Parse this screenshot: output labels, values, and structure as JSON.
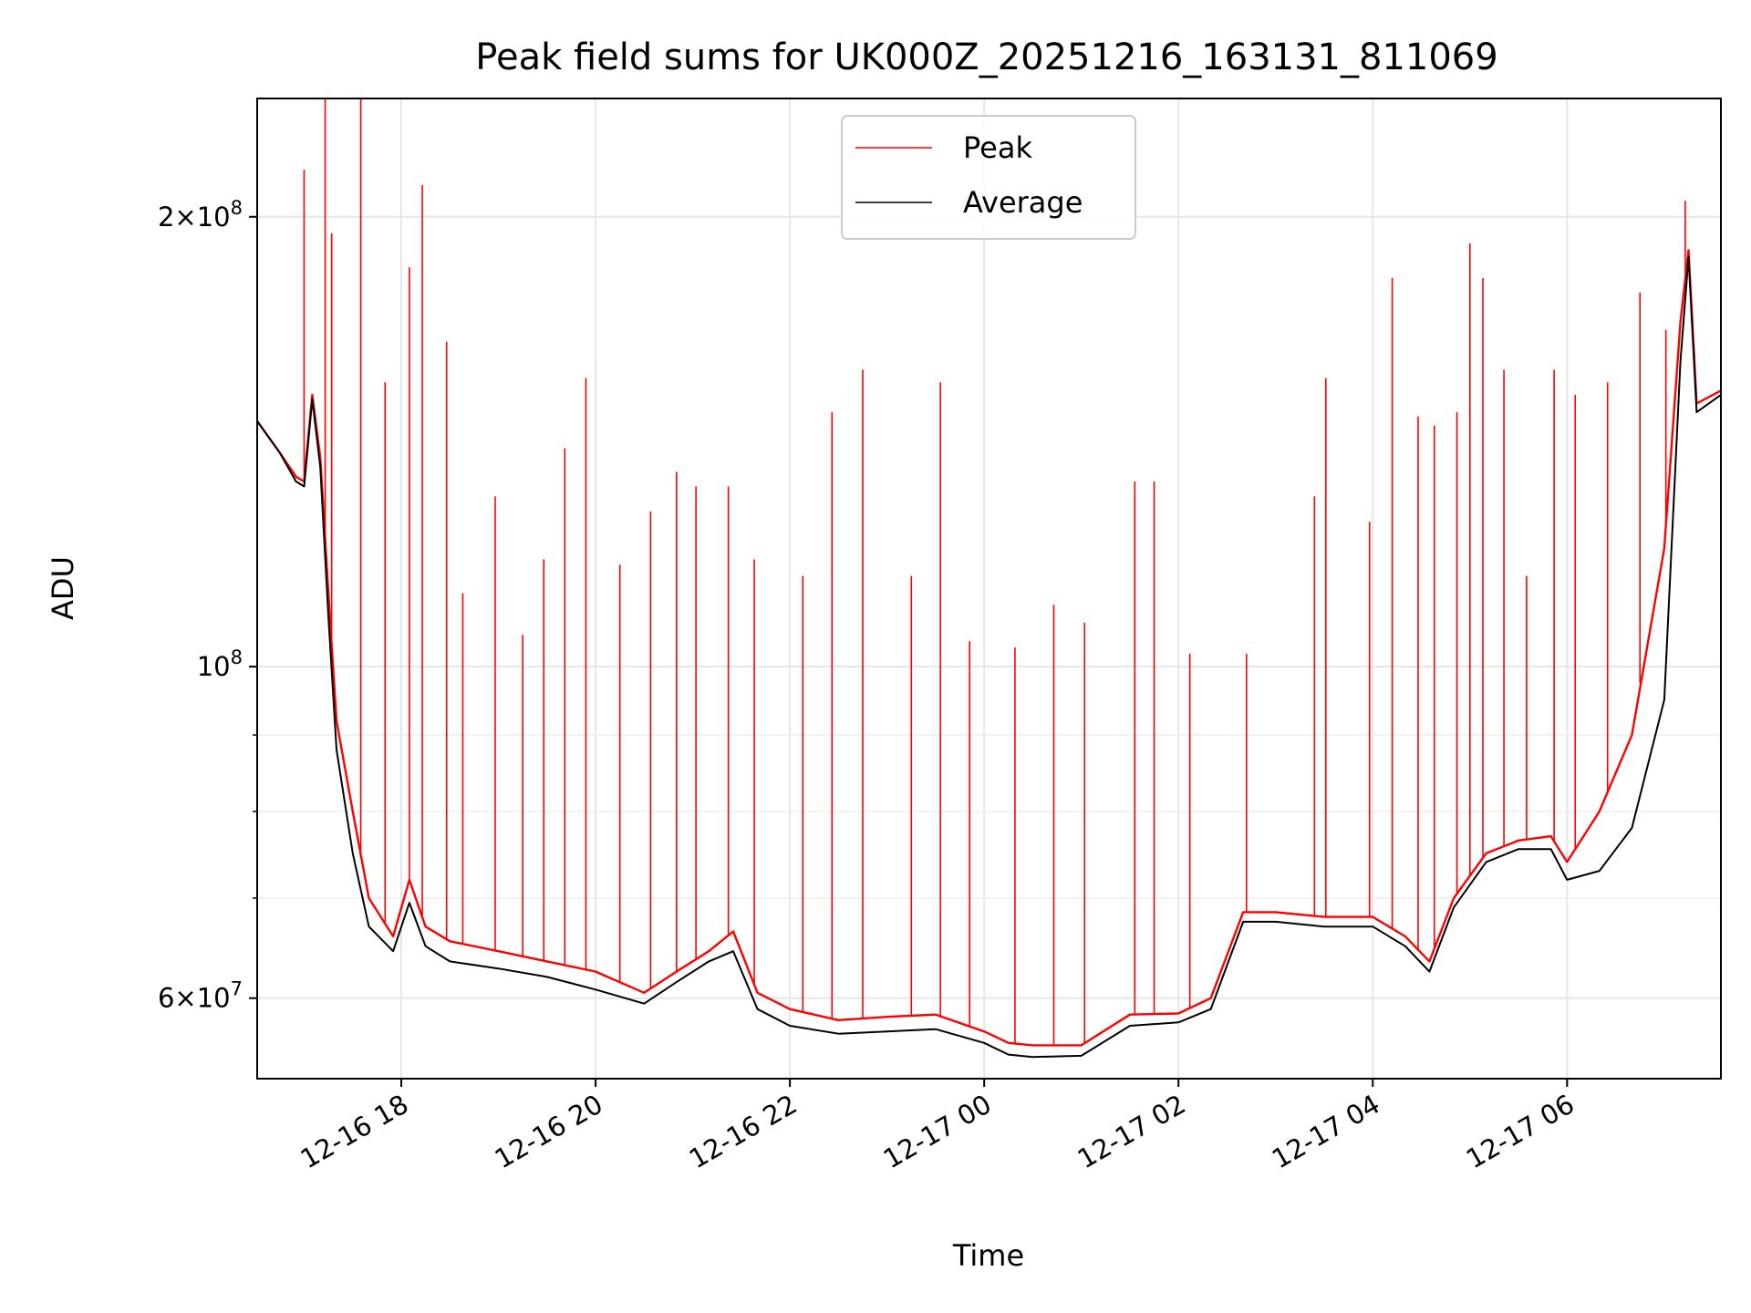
{
  "chart_data": {
    "type": "line",
    "title": "Peak field sums for UK000Z_20251216_163131_811069",
    "xlabel": "Time",
    "ylabel": "ADU",
    "yscale": "log",
    "ylim": [
      53000000,
      240000000
    ],
    "xlim": [
      "2025-12-16 16:31",
      "2025-12-17 07:35"
    ],
    "x_ticks": [
      {
        "t": "2025-12-16 18:00",
        "label": "12-16 18"
      },
      {
        "t": "2025-12-16 20:00",
        "label": "12-16 20"
      },
      {
        "t": "2025-12-16 22:00",
        "label": "12-16 22"
      },
      {
        "t": "2025-12-17 00:00",
        "label": "12-17 00"
      },
      {
        "t": "2025-12-17 02:00",
        "label": "12-17 02"
      },
      {
        "t": "2025-12-17 04:00",
        "label": "12-17 04"
      },
      {
        "t": "2025-12-17 06:00",
        "label": "12-17 06"
      }
    ],
    "y_ticks_major": [
      {
        "value": 60000000,
        "mant": "6",
        "exp": "7"
      },
      {
        "value": 100000000,
        "mant": "",
        "exp": "8"
      },
      {
        "value": 200000000,
        "mant": "2",
        "exp": "8"
      }
    ],
    "y_ticks_minor": [
      70000000,
      80000000,
      90000000
    ],
    "grid": true,
    "legend_position": "top-center",
    "series": [
      {
        "name": "Peak",
        "color": "#ff0000",
        "x": [
          "2025-12-16 16:31",
          "2025-12-16 16:45",
          "2025-12-16 16:55",
          "2025-12-16 17:00",
          "2025-12-16 17:05",
          "2025-12-16 17:10",
          "2025-12-16 17:15",
          "2025-12-16 17:20",
          "2025-12-16 17:30",
          "2025-12-16 17:40",
          "2025-12-16 17:55",
          "2025-12-16 18:05",
          "2025-12-16 18:15",
          "2025-12-16 18:30",
          "2025-12-16 19:00",
          "2025-12-16 19:30",
          "2025-12-16 20:00",
          "2025-12-16 20:30",
          "2025-12-16 20:50",
          "2025-12-16 21:10",
          "2025-12-16 21:25",
          "2025-12-16 21:40",
          "2025-12-16 22:00",
          "2025-12-16 22:30",
          "2025-12-16 23:00",
          "2025-12-16 23:30",
          "2025-12-17 00:00",
          "2025-12-17 00:15",
          "2025-12-17 00:30",
          "2025-12-17 01:00",
          "2025-12-17 01:30",
          "2025-12-17 02:00",
          "2025-12-17 02:20",
          "2025-12-17 02:40",
          "2025-12-17 03:00",
          "2025-12-17 03:30",
          "2025-12-17 04:00",
          "2025-12-17 04:20",
          "2025-12-17 04:35",
          "2025-12-17 04:50",
          "2025-12-17 05:10",
          "2025-12-17 05:30",
          "2025-12-17 05:50",
          "2025-12-17 06:00",
          "2025-12-17 06:20",
          "2025-12-17 06:40",
          "2025-12-17 07:00",
          "2025-12-17 07:10",
          "2025-12-17 07:15",
          "2025-12-17 07:20",
          "2025-12-17 07:35"
        ],
        "values": [
          146000000,
          139000000,
          134000000,
          133000000,
          152000000,
          138000000,
          112000000,
          92000000,
          80000000,
          70000000,
          66000000,
          72000000,
          67000000,
          65500000,
          64500000,
          63500000,
          62500000,
          60500000,
          62500000,
          64500000,
          66500000,
          60500000,
          59000000,
          58000000,
          58300000,
          58500000,
          57000000,
          56000000,
          55800000,
          55800000,
          58500000,
          58600000,
          60000000,
          68500000,
          68500000,
          68000000,
          68000000,
          66000000,
          63500000,
          70000000,
          75000000,
          76500000,
          77000000,
          74000000,
          80000000,
          90000000,
          120000000,
          170000000,
          190000000,
          150000000,
          153000000
        ]
      },
      {
        "name": "Average",
        "color": "#000000",
        "x": [
          "2025-12-16 16:31",
          "2025-12-16 16:45",
          "2025-12-16 16:55",
          "2025-12-16 17:00",
          "2025-12-16 17:05",
          "2025-12-16 17:10",
          "2025-12-16 17:15",
          "2025-12-16 17:20",
          "2025-12-16 17:30",
          "2025-12-16 17:40",
          "2025-12-16 17:55",
          "2025-12-16 18:05",
          "2025-12-16 18:15",
          "2025-12-16 18:30",
          "2025-12-16 19:00",
          "2025-12-16 19:30",
          "2025-12-16 20:00",
          "2025-12-16 20:30",
          "2025-12-16 20:50",
          "2025-12-16 21:10",
          "2025-12-16 21:25",
          "2025-12-16 21:40",
          "2025-12-16 22:00",
          "2025-12-16 22:30",
          "2025-12-16 23:00",
          "2025-12-16 23:30",
          "2025-12-17 00:00",
          "2025-12-17 00:15",
          "2025-12-17 00:30",
          "2025-12-17 01:00",
          "2025-12-17 01:30",
          "2025-12-17 02:00",
          "2025-12-17 02:20",
          "2025-12-17 02:40",
          "2025-12-17 03:00",
          "2025-12-17 03:30",
          "2025-12-17 04:00",
          "2025-12-17 04:20",
          "2025-12-17 04:35",
          "2025-12-17 04:50",
          "2025-12-17 05:10",
          "2025-12-17 05:30",
          "2025-12-17 05:50",
          "2025-12-17 06:00",
          "2025-12-17 06:20",
          "2025-12-17 06:40",
          "2025-12-17 07:00",
          "2025-12-17 07:10",
          "2025-12-17 07:15",
          "2025-12-17 07:20",
          "2025-12-17 07:35"
        ],
        "values": [
          146000000,
          139000000,
          133000000,
          132000000,
          151000000,
          136000000,
          108000000,
          88000000,
          75000000,
          67000000,
          64500000,
          69500000,
          65000000,
          63500000,
          62800000,
          62000000,
          60800000,
          59500000,
          61500000,
          63500000,
          64500000,
          59000000,
          57500000,
          56800000,
          57000000,
          57200000,
          56000000,
          55000000,
          54800000,
          54900000,
          57500000,
          57800000,
          59000000,
          67500000,
          67500000,
          67000000,
          67000000,
          65000000,
          62500000,
          69000000,
          74000000,
          75500000,
          75500000,
          72000000,
          73000000,
          78000000,
          95000000,
          160000000,
          188000000,
          148000000,
          152000000
        ]
      }
    ],
    "peak_spikes": [
      {
        "t": "2025-12-16 17:00",
        "v": 215000000
      },
      {
        "t": "2025-12-16 17:13",
        "v": 240000000
      },
      {
        "t": "2025-12-16 17:17",
        "v": 195000000
      },
      {
        "t": "2025-12-16 17:35",
        "v": 240000000
      },
      {
        "t": "2025-12-16 17:50",
        "v": 155000000
      },
      {
        "t": "2025-12-16 18:05",
        "v": 185000000
      },
      {
        "t": "2025-12-16 18:13",
        "v": 210000000
      },
      {
        "t": "2025-12-16 18:28",
        "v": 165000000
      },
      {
        "t": "2025-12-16 18:38",
        "v": 112000000
      },
      {
        "t": "2025-12-16 18:58",
        "v": 130000000
      },
      {
        "t": "2025-12-16 19:15",
        "v": 105000000
      },
      {
        "t": "2025-12-16 19:28",
        "v": 118000000
      },
      {
        "t": "2025-12-16 19:41",
        "v": 140000000
      },
      {
        "t": "2025-12-16 19:54",
        "v": 156000000
      },
      {
        "t": "2025-12-16 20:15",
        "v": 117000000
      },
      {
        "t": "2025-12-16 20:34",
        "v": 127000000
      },
      {
        "t": "2025-12-16 20:50",
        "v": 135000000
      },
      {
        "t": "2025-12-16 21:02",
        "v": 132000000
      },
      {
        "t": "2025-12-16 21:22",
        "v": 132000000
      },
      {
        "t": "2025-12-16 21:38",
        "v": 118000000
      },
      {
        "t": "2025-12-16 22:08",
        "v": 115000000
      },
      {
        "t": "2025-12-16 22:26",
        "v": 148000000
      },
      {
        "t": "2025-12-16 22:45",
        "v": 158000000
      },
      {
        "t": "2025-12-16 23:15",
        "v": 115000000
      },
      {
        "t": "2025-12-16 23:33",
        "v": 155000000
      },
      {
        "t": "2025-12-16 23:51",
        "v": 104000000
      },
      {
        "t": "2025-12-17 00:19",
        "v": 103000000
      },
      {
        "t": "2025-12-17 00:43",
        "v": 110000000
      },
      {
        "t": "2025-12-17 01:02",
        "v": 107000000
      },
      {
        "t": "2025-12-17 01:33",
        "v": 133000000
      },
      {
        "t": "2025-12-17 01:45",
        "v": 133000000
      },
      {
        "t": "2025-12-17 02:07",
        "v": 102000000
      },
      {
        "t": "2025-12-17 02:42",
        "v": 102000000
      },
      {
        "t": "2025-12-17 03:24",
        "v": 130000000
      },
      {
        "t": "2025-12-17 03:31",
        "v": 156000000
      },
      {
        "t": "2025-12-17 03:58",
        "v": 125000000
      },
      {
        "t": "2025-12-17 04:12",
        "v": 182000000
      },
      {
        "t": "2025-12-17 04:28",
        "v": 147000000
      },
      {
        "t": "2025-12-17 04:38",
        "v": 145000000
      },
      {
        "t": "2025-12-17 04:52",
        "v": 148000000
      },
      {
        "t": "2025-12-17 05:00",
        "v": 192000000
      },
      {
        "t": "2025-12-17 05:08",
        "v": 182000000
      },
      {
        "t": "2025-12-17 05:21",
        "v": 158000000
      },
      {
        "t": "2025-12-17 05:35",
        "v": 115000000
      },
      {
        "t": "2025-12-17 05:52",
        "v": 158000000
      },
      {
        "t": "2025-12-17 06:05",
        "v": 152000000
      },
      {
        "t": "2025-12-17 06:25",
        "v": 155000000
      },
      {
        "t": "2025-12-17 06:45",
        "v": 178000000
      },
      {
        "t": "2025-12-17 07:01",
        "v": 168000000
      },
      {
        "t": "2025-12-17 07:13",
        "v": 205000000
      }
    ]
  }
}
